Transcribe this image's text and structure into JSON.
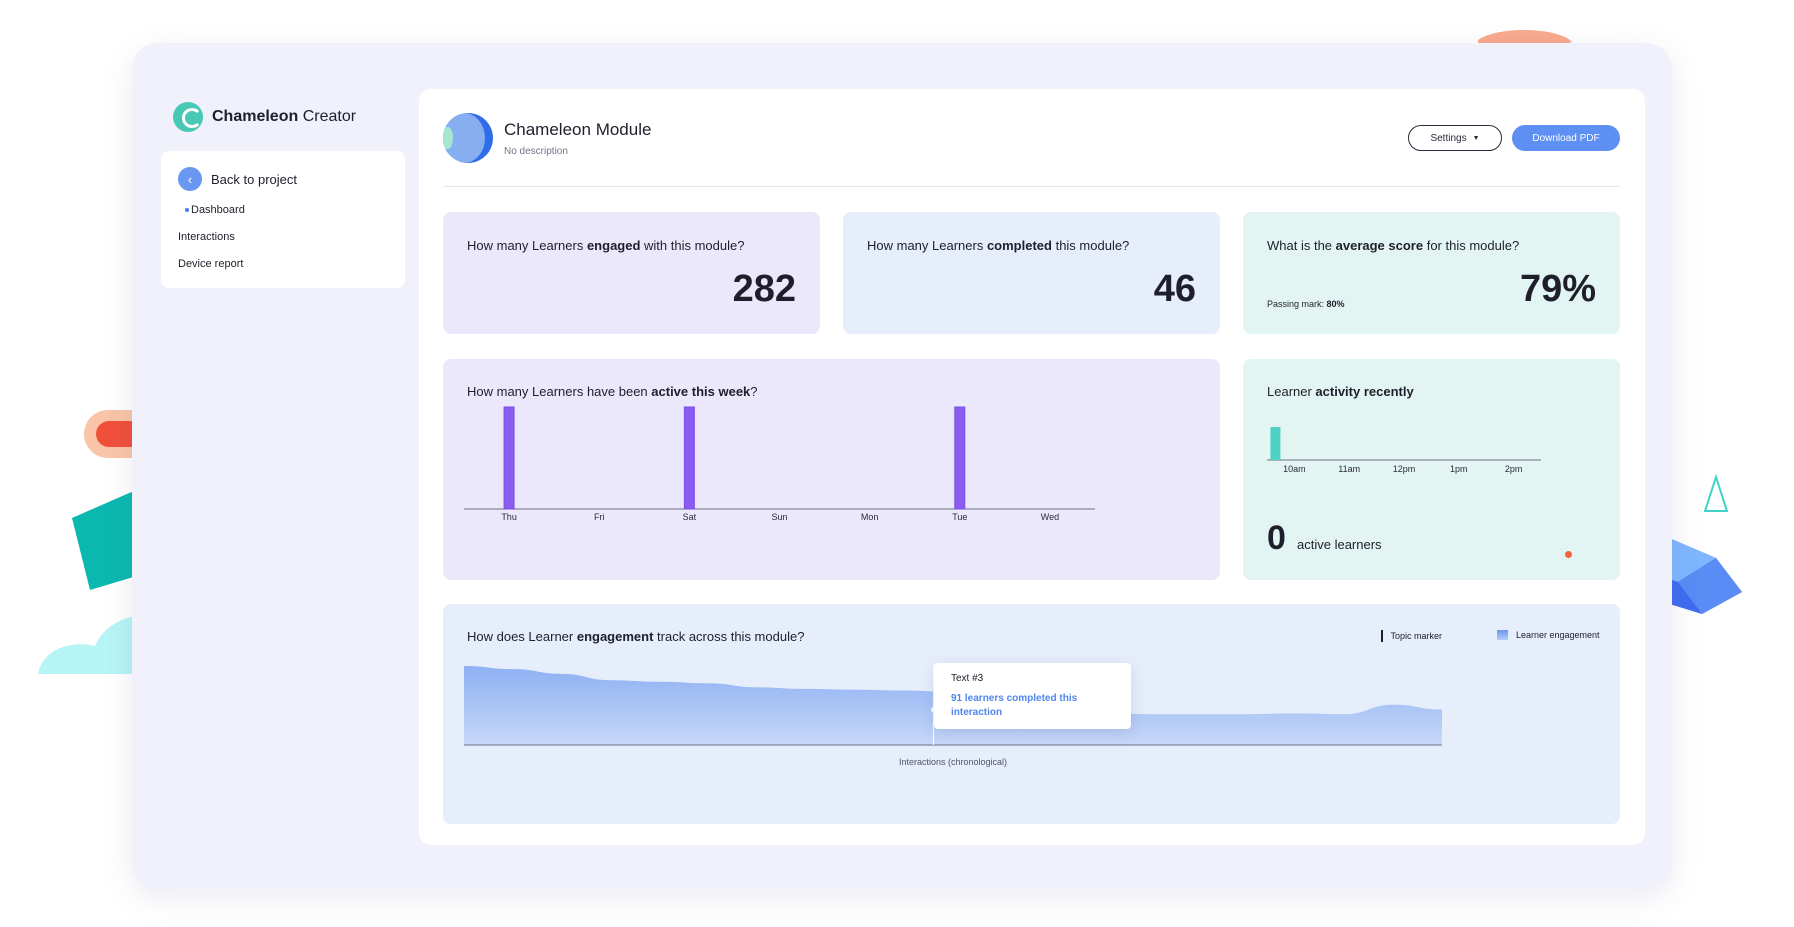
{
  "brand": {
    "name_strong": "Chameleon",
    "name_rest": "Creator"
  },
  "nav": {
    "back_label": "Back to project",
    "items": [
      "Dashboard",
      "Interactions",
      "Device report"
    ],
    "active": "Dashboard"
  },
  "module": {
    "title_a": "Chameleon",
    "title_b": "Module",
    "description": "No description",
    "settings_label": "Settings",
    "download_label": "Download PDF"
  },
  "stats": [
    {
      "q_pre": "How many Learners ",
      "q_bold": "engaged",
      "q_post": " with this module?",
      "value": "282",
      "sub_label": "",
      "sub_value": ""
    },
    {
      "q_pre": "How many Learners ",
      "q_bold": "completed",
      "q_post": " this module?",
      "value": "46",
      "sub_label": "",
      "sub_value": ""
    },
    {
      "q_pre": "What is the ",
      "q_bold": "average score",
      "q_post": " for this module?",
      "value": "79%",
      "sub_label": "Passing mark: ",
      "sub_value": "80%"
    }
  ],
  "week_card": {
    "title_pre": "How many Learners have been ",
    "title_bold": "active this week",
    "title_post": "?"
  },
  "recent_card": {
    "title_pre": "Learner ",
    "title_bold": "activity recently",
    "count": "0",
    "label": "active learners"
  },
  "engagement_card": {
    "title_pre": "How does Learner ",
    "title_bold": "engagement",
    "title_post": " track across this module?",
    "legend_topic": "Topic marker",
    "legend_engagement": "Learner engagement",
    "x_label": "Interactions (chronological)",
    "tooltip_title": "Text #3",
    "tooltip_value": "91 learners completed this interaction"
  },
  "colors": {
    "accent_blue": "#5e8ff2",
    "purple_bar": "#8b5cf0",
    "teal_bar": "#4fd1c5",
    "area_blue": "#7fa6f2"
  },
  "chart_data": [
    {
      "type": "bar",
      "categories": [
        "Thu",
        "Fri",
        "Sat",
        "Sun",
        "Mon",
        "Tue",
        "Wed"
      ],
      "values": [
        1,
        0,
        1,
        0,
        0,
        1,
        0
      ],
      "ylim": [
        0,
        1
      ],
      "grid": false
    },
    {
      "type": "bar",
      "categories": [
        "10am",
        "11am",
        "12pm",
        "1pm",
        "2pm"
      ],
      "values": [
        1,
        0,
        0,
        0,
        0
      ],
      "ylim": [
        0,
        1
      ],
      "grid": false
    },
    {
      "type": "area",
      "x": [
        0,
        5,
        10,
        15,
        20,
        25,
        30,
        35,
        40,
        45,
        50,
        55,
        60,
        65,
        70,
        75,
        80,
        85,
        90,
        95,
        100
      ],
      "values": [
        100,
        96,
        90,
        82,
        80,
        78,
        73,
        71,
        70,
        69,
        67,
        65,
        47,
        41,
        39,
        39,
        39,
        40,
        39,
        51,
        45
      ],
      "marker_x": 48,
      "ylim": [
        0,
        100
      ],
      "grid": false
    }
  ]
}
